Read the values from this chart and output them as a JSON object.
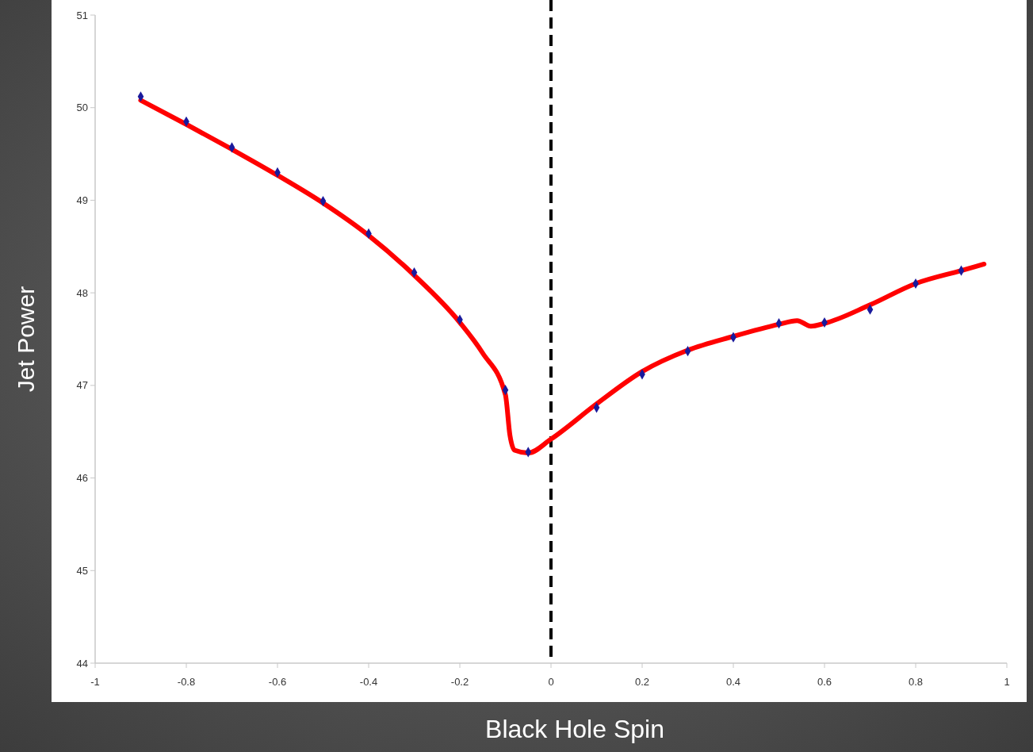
{
  "chart_data": {
    "type": "line",
    "xlabel": "Black Hole Spin",
    "ylabel": "Jet Power",
    "xlim": [
      -1,
      1
    ],
    "xticks": [
      -1,
      -0.8,
      -0.6,
      -0.4,
      -0.2,
      0,
      0.2,
      0.4,
      0.6,
      0.8,
      1
    ],
    "ylim": [
      44,
      51
    ],
    "yticks": [
      44,
      45,
      46,
      47,
      48,
      49,
      50,
      51
    ],
    "grid": false,
    "ref_lines": [
      {
        "axis": "x",
        "value": 0,
        "color": "#000000",
        "line_style": "dashed"
      }
    ],
    "series": [
      {
        "type": "scatter",
        "marker": "diamond",
        "color": "#1a1a9c",
        "x": [
          -0.9,
          -0.8,
          -0.7,
          -0.6,
          -0.5,
          -0.4,
          -0.3,
          -0.2,
          -0.1,
          -0.05,
          0.1,
          0.2,
          0.3,
          0.4,
          0.5,
          0.6,
          0.7,
          0.8,
          0.9
        ],
        "values": [
          50.12,
          49.85,
          49.57,
          49.3,
          48.99,
          48.64,
          48.22,
          47.71,
          46.95,
          46.28,
          46.76,
          47.12,
          47.37,
          47.52,
          47.67,
          47.68,
          47.82,
          48.1,
          48.24
        ]
      },
      {
        "marker": "none",
        "line_style": "solid",
        "color": "#ff0000",
        "x": [
          -0.9,
          -0.8,
          -0.7,
          -0.6,
          -0.5,
          -0.4,
          -0.3,
          -0.2,
          -0.15,
          -0.1,
          -0.09,
          -0.08,
          -0.05,
          0,
          0.1,
          0.2,
          0.3,
          0.4,
          0.5,
          0.54,
          0.57,
          0.6,
          0.7,
          0.8,
          0.9,
          0.95
        ],
        "values": [
          50.08,
          49.82,
          49.55,
          49.27,
          48.97,
          48.62,
          48.19,
          47.68,
          47.35,
          46.9,
          46.46,
          46.3,
          46.27,
          46.42,
          46.8,
          47.15,
          47.38,
          47.53,
          47.66,
          47.7,
          47.64,
          47.67,
          47.87,
          48.1,
          48.24,
          48.31
        ]
      }
    ]
  }
}
